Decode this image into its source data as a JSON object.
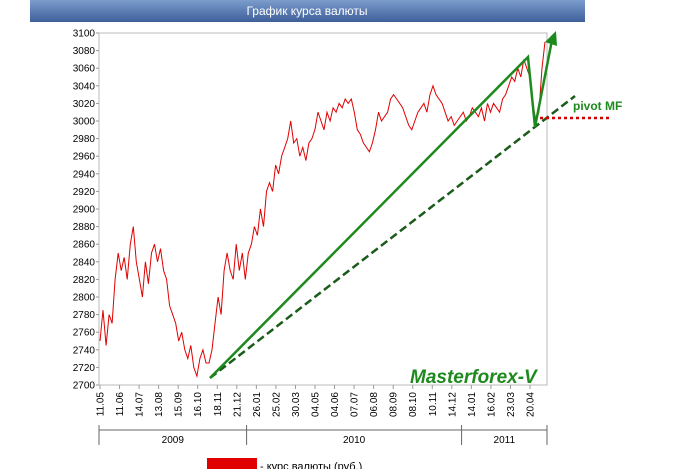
{
  "chart_data": {
    "type": "line",
    "title": "График курса валюты",
    "series": [
      {
        "name": "- курс валюты (руб.)",
        "color": "#e00000",
        "values": [
          2750,
          2785,
          2745,
          2780,
          2770,
          2820,
          2850,
          2830,
          2845,
          2820,
          2860,
          2880,
          2840,
          2820,
          2800,
          2840,
          2815,
          2850,
          2860,
          2840,
          2855,
          2830,
          2820,
          2790,
          2780,
          2770,
          2750,
          2760,
          2740,
          2730,
          2745,
          2720,
          2710,
          2730,
          2740,
          2725,
          2725,
          2740,
          2770,
          2800,
          2780,
          2830,
          2850,
          2830,
          2820,
          2860,
          2830,
          2850,
          2820,
          2850,
          2860,
          2880,
          2870,
          2900,
          2880,
          2920,
          2930,
          2920,
          2950,
          2940,
          2960,
          2970,
          2980,
          3000,
          2975,
          2980,
          2960,
          2970,
          2955,
          2975,
          2980,
          2990,
          3010,
          3000,
          2990,
          3010,
          3000,
          3015,
          3010,
          3020,
          3015,
          3025,
          3020,
          3025,
          3010,
          2990,
          2985,
          2975,
          2970,
          2965,
          2975,
          2990,
          3010,
          3000,
          3005,
          3010,
          3025,
          3030,
          3025,
          3020,
          3015,
          3005,
          2995,
          2990,
          3000,
          3010,
          3015,
          3020,
          3010,
          3030,
          3040,
          3030,
          3025,
          3020,
          3010,
          3000,
          3005,
          2995,
          3000,
          3005,
          3010,
          3000,
          3005,
          3015,
          3010,
          3005,
          3015,
          3000,
          3020,
          3010,
          3020,
          3015,
          3010,
          3025,
          3030,
          3040,
          3050,
          3045,
          3060,
          3050,
          3070,
          3060,
          3050,
          3020,
          3000,
          3010,
          3060,
          3090
        ]
      }
    ],
    "x_labels": [
      "11.05",
      "11.06",
      "14.07",
      "13.08",
      "15.09",
      "16.10",
      "18.11",
      "21.12",
      "26.01",
      "25.02",
      "30.03",
      "04.05",
      "04.06",
      "07.07",
      "06.08",
      "08.09",
      "08.10",
      "10.11",
      "14.12",
      "14.01",
      "16.02",
      "23.03",
      "20.04"
    ],
    "years": [
      "2009",
      "2010",
      "2011"
    ],
    "ylim": [
      2700,
      3100
    ],
    "yticks": [
      2700,
      2720,
      2740,
      2760,
      2780,
      2800,
      2820,
      2840,
      2860,
      2880,
      2900,
      2920,
      2940,
      2960,
      2980,
      3000,
      3020,
      3040,
      3060,
      3080,
      3100
    ],
    "annotations": [
      "Masterforex-V",
      "pivot MF"
    ]
  }
}
